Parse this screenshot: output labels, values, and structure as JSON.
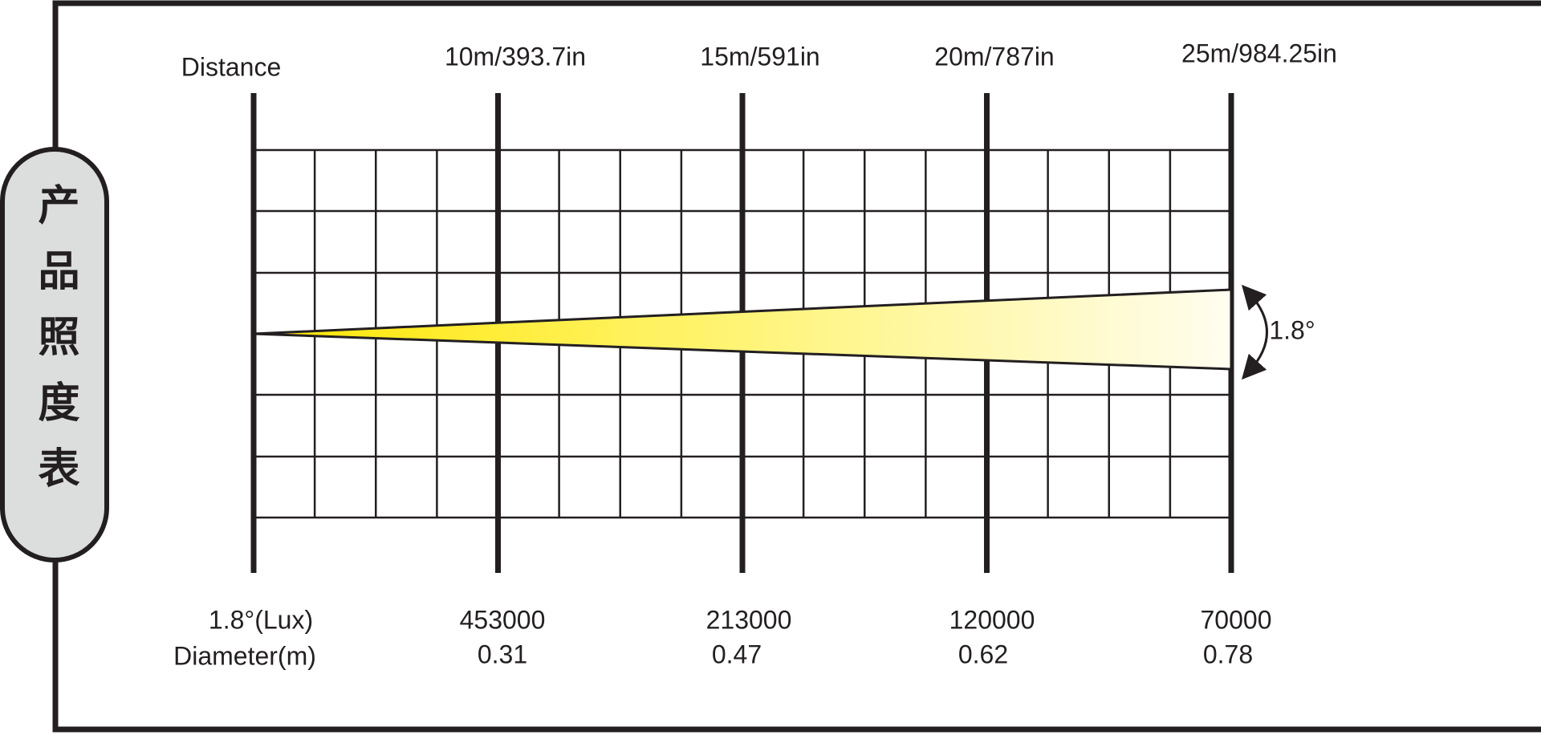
{
  "side_title": "产品照度表",
  "distance_label": "Distance",
  "distances": [
    "10m/393.7in",
    "15m/591in",
    "20m/787in",
    "25m/984.25in"
  ],
  "beam_angle": "1.8°",
  "lux_label": "1.8°(Lux)",
  "lux_values": [
    453000,
    213000,
    120000,
    70000
  ],
  "diameter_label": "Diameter(m)",
  "diameter_values": [
    0.31,
    0.47,
    0.62,
    0.78
  ]
}
